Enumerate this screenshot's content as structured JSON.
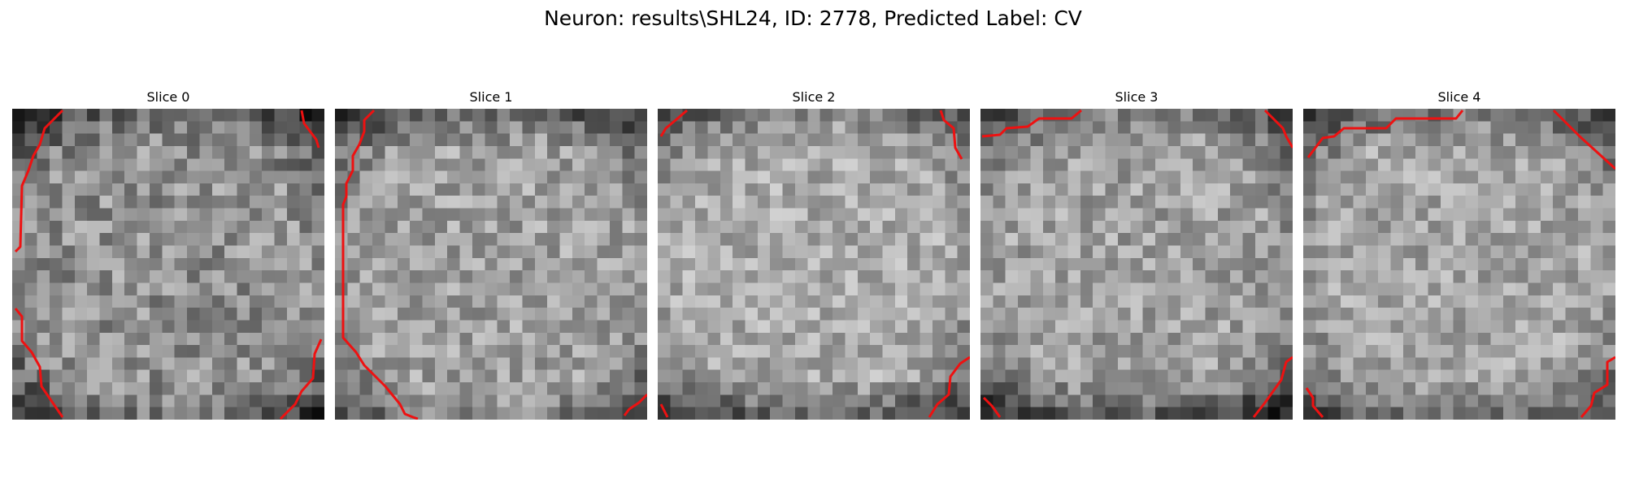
{
  "title": "Neuron: results\\SHL24, ID: 2778, Predicted Label: CV",
  "contour_color": "#ee1111",
  "slices": [
    {
      "label": "Slice 0"
    },
    {
      "label": "Slice 1"
    },
    {
      "label": "Slice 2"
    },
    {
      "label": "Slice 3"
    },
    {
      "label": "Slice 4"
    }
  ]
}
